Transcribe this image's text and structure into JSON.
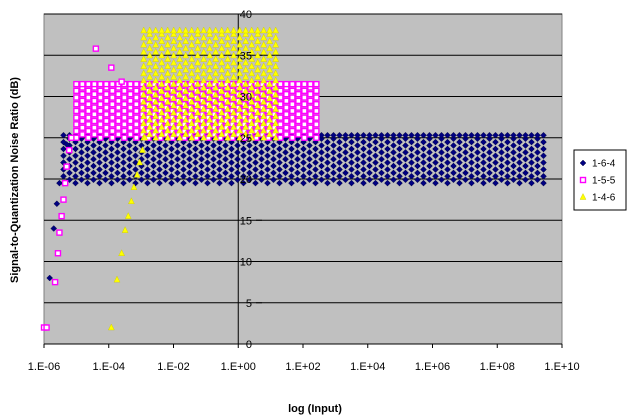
{
  "chart_data": {
    "type": "scatter",
    "title": "",
    "xlabel": "log (Input)",
    "ylabel": "Signal-to-Quantization Noise Ratio (dB)",
    "x_scale": "log",
    "xlim": [
      1e-06,
      10000000000.0
    ],
    "ylim": [
      0,
      40
    ],
    "grid": true,
    "legend_position": "right",
    "x_ticks": [
      "1.E-06",
      "1.E-04",
      "1.E-02",
      "1.E+00",
      "1.E+02",
      "1.E+04",
      "1.E+06",
      "1.E+08",
      "1.E+10"
    ],
    "y_ticks": [
      "0",
      "5",
      "10",
      "15",
      "20",
      "25",
      "30",
      "35",
      "40"
    ],
    "plot_background": "#c0c0c0",
    "series": [
      {
        "name": "1-6-4",
        "color": "#000080",
        "marker": "diamond",
        "points": [
          [
            1.5e-06,
            8
          ],
          [
            2e-06,
            14
          ],
          [
            2.5e-06,
            17
          ],
          [
            3e-06,
            19.5
          ],
          [
            4e-06,
            22
          ],
          [
            5e-06,
            24.2
          ]
        ],
        "band": {
          "x_from": 4e-06,
          "x_to": 4000000000.0,
          "y_min": 19.5,
          "y_max": 25.3
        }
      },
      {
        "name": "1-5-5",
        "color": "#ff00ff",
        "marker": "square",
        "points": [
          [
            1e-06,
            2
          ],
          [
            1.2e-06,
            2
          ],
          [
            2.2e-06,
            7.5
          ],
          [
            2.7e-06,
            11
          ],
          [
            3e-06,
            13.5
          ],
          [
            3.5e-06,
            15.5
          ],
          [
            4e-06,
            17.5
          ],
          [
            4.5e-06,
            19.5
          ],
          [
            5e-06,
            21.5
          ],
          [
            6e-06,
            23.5
          ],
          [
            7e-06,
            25
          ],
          [
            4e-05,
            35.8
          ],
          [
            0.00012,
            33.5
          ],
          [
            0.00025,
            31.8
          ]
        ],
        "band": {
          "x_from": 1e-05,
          "x_to": 300,
          "y_min": 25,
          "y_max": 31.5
        }
      },
      {
        "name": "1-4-6",
        "color": "#ffff00",
        "marker": "triangle",
        "points": [
          [
            0.00012,
            2
          ],
          [
            0.00018,
            7.8
          ],
          [
            0.00025,
            11
          ],
          [
            0.00032,
            13.8
          ],
          [
            0.0004,
            15.5
          ],
          [
            0.0005,
            17.3
          ],
          [
            0.0006,
            19
          ],
          [
            0.00075,
            20.5
          ],
          [
            0.0009,
            22
          ],
          [
            0.0011,
            23.5
          ],
          [
            0.0013,
            25
          ]
        ],
        "band": {
          "x_from": 0.0012,
          "x_to": 20,
          "y_min": 25,
          "y_max": 38
        }
      }
    ]
  }
}
